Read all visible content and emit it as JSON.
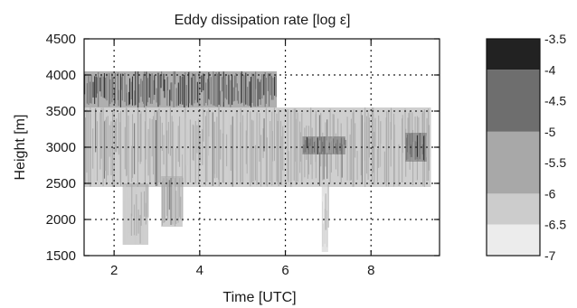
{
  "chart_data": {
    "type": "heatmap",
    "title": "Eddy dissipation rate [log ε]",
    "xlabel": "Time [UTC]",
    "ylabel": "Height [m]",
    "xlim": [
      1.3,
      9.6
    ],
    "ylim": [
      1500,
      4500
    ],
    "x_ticks": [
      2,
      4,
      6,
      8
    ],
    "x_tick_labels": [
      "2",
      "4",
      "6",
      "8"
    ],
    "y_ticks": [
      1500,
      2000,
      2500,
      3000,
      3500,
      4000,
      4500
    ],
    "y_tick_labels": [
      "1500",
      "2000",
      "2500",
      "3000",
      "3500",
      "4000",
      "4500"
    ],
    "grid": true,
    "colorbar": {
      "levels": [
        -7,
        -6.5,
        -6,
        -5.5,
        -5,
        -4.5,
        -4,
        -3.5
      ],
      "labels": [
        "-3.5",
        "-4",
        "-4.5",
        "-5",
        "-5.5",
        "-6",
        "-6.5",
        "-7"
      ],
      "bands": [
        {
          "from": -4,
          "to": -3.5,
          "color": "#222222"
        },
        {
          "from": -5,
          "to": -4,
          "color": "#6e6e6e"
        },
        {
          "from": -6,
          "to": -5,
          "color": "#a8a8a8"
        },
        {
          "from": -6.5,
          "to": -6,
          "color": "#cccccc"
        },
        {
          "from": -7,
          "to": -6.5,
          "color": "#ececec"
        }
      ]
    },
    "regions": [
      {
        "name": "upper turbulent layer",
        "x": [
          1.3,
          5.8
        ],
        "y": [
          3550,
          4050
        ],
        "log_eps": -4.2
      },
      {
        "name": "main echo layer",
        "x": [
          1.3,
          9.4
        ],
        "y": [
          2450,
          3550
        ],
        "log_eps": -5.6
      },
      {
        "name": "lower plume near 2.4 UTC",
        "x": [
          2.2,
          2.8
        ],
        "y": [
          1650,
          2500
        ],
        "log_eps": -5.8
      },
      {
        "name": "lower plume near 3.4 UTC",
        "x": [
          3.1,
          3.6
        ],
        "y": [
          1900,
          2600
        ],
        "log_eps": -5.6
      },
      {
        "name": "dark patch near 7 UTC",
        "x": [
          6.4,
          7.4
        ],
        "y": [
          2900,
          3150
        ],
        "log_eps": -4.6
      },
      {
        "name": "dark patch near 9 UTC",
        "x": [
          8.8,
          9.3
        ],
        "y": [
          2800,
          3200
        ],
        "log_eps": -4.6
      },
      {
        "name": "fall streak near 7 UTC",
        "x": [
          6.85,
          7.0
        ],
        "y": [
          1550,
          2500
        ],
        "log_eps": -6.2
      }
    ],
    "colors": {
      "frame": "#111111",
      "text": "#1a1a1a"
    }
  }
}
